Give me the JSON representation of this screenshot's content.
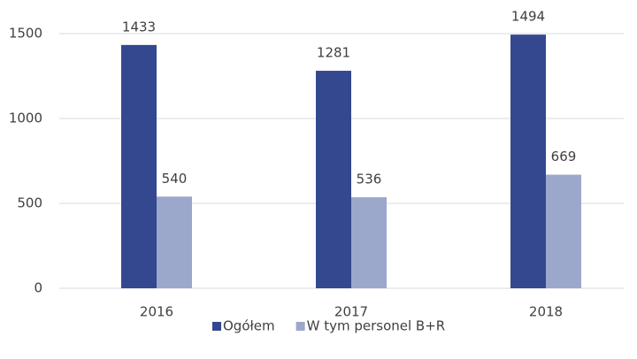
{
  "chart_data": {
    "type": "bar",
    "categories": [
      "2016",
      "2017",
      "2018"
    ],
    "series": [
      {
        "name": "Ogółem",
        "color": "#33488f",
        "values": [
          1433,
          1281,
          1494
        ]
      },
      {
        "name": "W tym personel B+R",
        "color": "#9ba8cb",
        "values": [
          540,
          536,
          669
        ]
      }
    ],
    "ylim": [
      0,
      1500
    ],
    "yticks": [
      0,
      500,
      1000,
      1500
    ],
    "grid": true,
    "legend": "bottom"
  }
}
